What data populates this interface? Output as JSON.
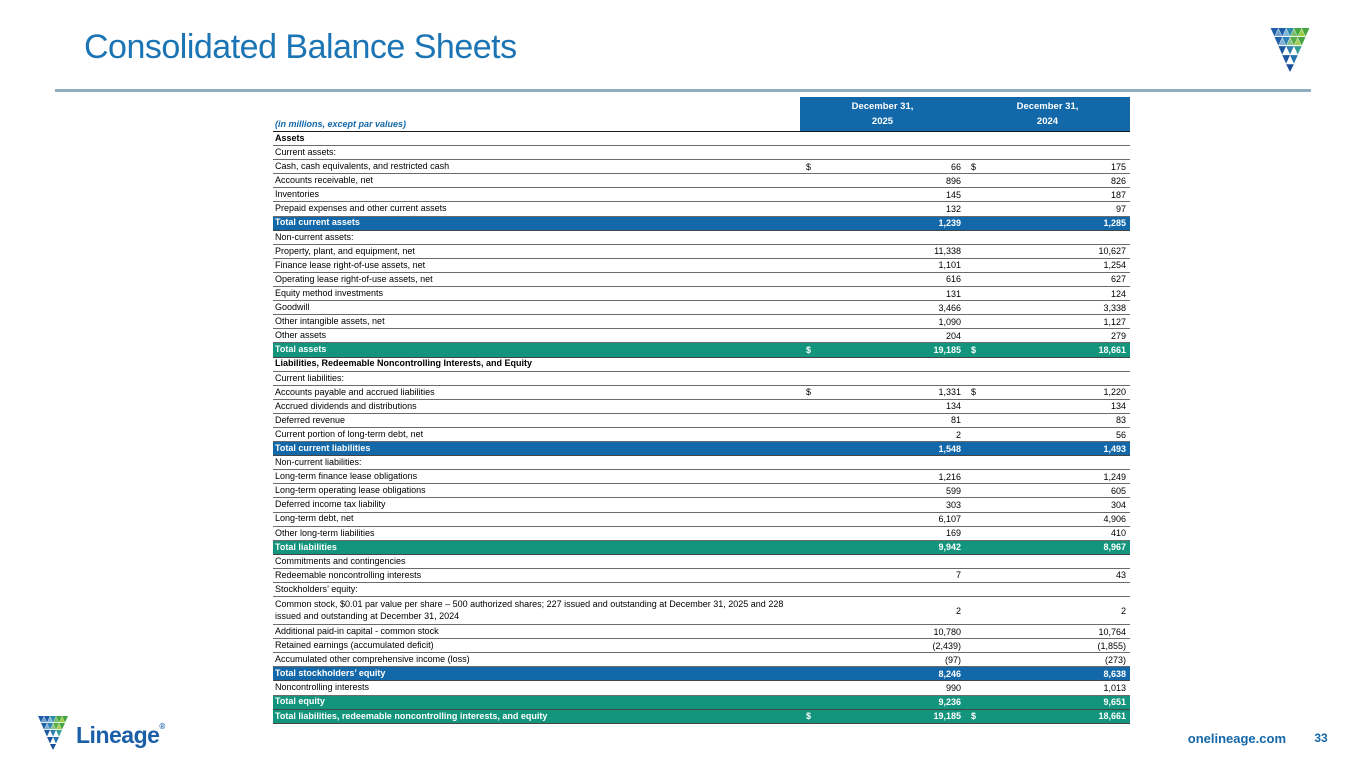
{
  "slide": {
    "title": "Consolidated Balance Sheets",
    "page_number": "33",
    "footer_url": "onelineage.com",
    "brand": {
      "wordmark": "Lineage",
      "trademark": "®"
    }
  },
  "colors": {
    "title_blue": "#1b74b4",
    "band_blue": "#1268a9",
    "band_teal": "#12957c",
    "rule_blue_gray": "#8fafc0",
    "footer_blue": "#1467a8"
  },
  "table": {
    "caption": "(in millions, except par values)",
    "currency_symbol": "$",
    "col_headers": [
      {
        "line1": "December 31,",
        "year": "2025"
      },
      {
        "line1": "December 31,",
        "year": "2024"
      }
    ],
    "rows": [
      {
        "type": "section",
        "label": "Assets"
      },
      {
        "type": "sub",
        "label": "Current assets:"
      },
      {
        "type": "data",
        "label": "Cash, cash equivalents, and restricted cash",
        "dollar": true,
        "v1": "66",
        "v2": "175"
      },
      {
        "type": "data",
        "label": "Accounts receivable, net",
        "v1": "896",
        "v2": "826"
      },
      {
        "type": "data",
        "label": "Inventories",
        "v1": "145",
        "v2": "187"
      },
      {
        "type": "data",
        "label": "Prepaid expenses and other current assets",
        "v1": "132",
        "v2": "97"
      },
      {
        "type": "total-blue",
        "label": "Total current assets",
        "v1": "1,239",
        "v2": "1,285"
      },
      {
        "type": "sub",
        "label": "Non-current assets:"
      },
      {
        "type": "data",
        "label": "Property, plant, and equipment, net",
        "v1": "11,338",
        "v2": "10,627"
      },
      {
        "type": "data",
        "label": "Finance lease right-of-use assets, net",
        "v1": "1,101",
        "v2": "1,254"
      },
      {
        "type": "data",
        "label": "Operating lease right-of-use assets, net",
        "v1": "616",
        "v2": "627"
      },
      {
        "type": "data",
        "label": "Equity method investments",
        "v1": "131",
        "v2": "124"
      },
      {
        "type": "data",
        "label": "Goodwill",
        "v1": "3,466",
        "v2": "3,338"
      },
      {
        "type": "data",
        "label": "Other intangible assets, net",
        "v1": "1,090",
        "v2": "1,127"
      },
      {
        "type": "data",
        "label": "Other assets",
        "v1": "204",
        "v2": "279"
      },
      {
        "type": "total-teal",
        "label": "Total assets",
        "dollar": true,
        "v1": "19,185",
        "v2": "18,661"
      },
      {
        "type": "section",
        "label": "Liabilities, Redeemable Noncontrolling Interests, and Equity"
      },
      {
        "type": "sub",
        "label": "Current liabilities:"
      },
      {
        "type": "data",
        "label": "Accounts payable and accrued liabilities",
        "dollar": true,
        "v1": "1,331",
        "v2": "1,220"
      },
      {
        "type": "data",
        "label": "Accrued dividends and distributions",
        "v1": "134",
        "v2": "134"
      },
      {
        "type": "data",
        "label": "Deferred revenue",
        "v1": "81",
        "v2": "83"
      },
      {
        "type": "data",
        "label": "Current portion of long-term debt, net",
        "v1": "2",
        "v2": "56"
      },
      {
        "type": "total-blue",
        "label": "Total current liabilities",
        "v1": "1,548",
        "v2": "1,493"
      },
      {
        "type": "sub",
        "label": "Non-current liabilities:"
      },
      {
        "type": "data",
        "label": "Long-term finance lease obligations",
        "v1": "1,216",
        "v2": "1,249"
      },
      {
        "type": "data",
        "label": "Long-term operating lease obligations",
        "v1": "599",
        "v2": "605"
      },
      {
        "type": "data",
        "label": "Deferred income tax liability",
        "v1": "303",
        "v2": "304"
      },
      {
        "type": "data",
        "label": "Long-term debt, net",
        "v1": "6,107",
        "v2": "4,906"
      },
      {
        "type": "data",
        "label": "Other long-term liabilities",
        "v1": "169",
        "v2": "410"
      },
      {
        "type": "total-teal",
        "label": "Total liabilities",
        "v1": "9,942",
        "v2": "8,967"
      },
      {
        "type": "sub",
        "label": "Commitments and contingencies"
      },
      {
        "type": "data",
        "label": "Redeemable noncontrolling interests",
        "v1": "7",
        "v2": "43"
      },
      {
        "type": "sub",
        "label": "Stockholders’ equity:"
      },
      {
        "type": "data-tall",
        "label": "Common stock, $0.01 par value per share – 500 authorized shares; 227 issued and outstanding at December 31, 2025 and 228 issued and outstanding at December 31, 2024",
        "v1": "2",
        "v2": "2"
      },
      {
        "type": "data",
        "label": "Additional paid-in capital - common stock",
        "v1": "10,780",
        "v2": "10,764"
      },
      {
        "type": "data",
        "label": "Retained earnings (accumulated deficit)",
        "v1": "(2,439)",
        "v2": "(1,855)"
      },
      {
        "type": "data",
        "label": "Accumulated other comprehensive income (loss)",
        "v1": "(97)",
        "v2": "(273)"
      },
      {
        "type": "total-blue",
        "label": "Total stockholders’ equity",
        "v1": "8,246",
        "v2": "8,638"
      },
      {
        "type": "data",
        "label": "Noncontrolling interests",
        "v1": "990",
        "v2": "1,013"
      },
      {
        "type": "total-teal",
        "label": "Total equity",
        "v1": "9,236",
        "v2": "9,651"
      },
      {
        "type": "total-teal",
        "label": "Total liabilities, redeemable noncontrolling interests, and equity",
        "dollar": true,
        "v1": "19,185",
        "v2": "18,661"
      }
    ]
  }
}
